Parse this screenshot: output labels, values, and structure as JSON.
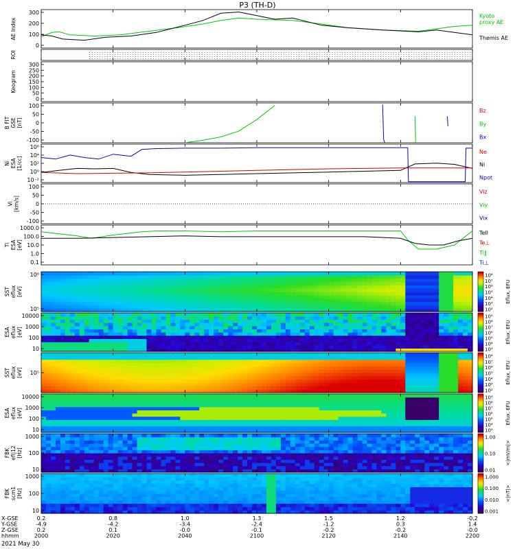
{
  "chart_data": {
    "type": "line",
    "title": "P3 (TH-D)",
    "date_label": "2021 May 30",
    "x_axis": {
      "rows": [
        {
          "label": "X-GSE",
          "values": [
            "0.2",
            "0.8",
            "1.0",
            "1.3",
            "1.5",
            "1.2",
            "-0.2"
          ]
        },
        {
          "label": "Y-GSE",
          "values": [
            "-4.9",
            "-4.2",
            "-3.4",
            "-2.4",
            "-1.2",
            "0.3",
            "1.4"
          ]
        },
        {
          "label": "Z-GSE",
          "values": [
            "0.2",
            "0.1",
            "-0.0",
            "-0.1",
            "-0.2",
            "-0.2",
            "-0.0"
          ]
        },
        {
          "label": "hhmm",
          "values": [
            "2000",
            "2020",
            "2040",
            "2100",
            "2120",
            "2140",
            "2200"
          ]
        }
      ]
    },
    "panels": [
      {
        "id": "ae",
        "ylabel": [
          "AE Index"
        ],
        "yticks": [
          "300",
          "200",
          "100",
          "0"
        ],
        "ylim": [
          0,
          320
        ],
        "legend": [
          {
            "text": "Kyoto",
            "color": "#00c800"
          },
          {
            "text": "proxy AE",
            "color": "#00c800"
          },
          {
            "text": "Themis AE",
            "color": "#000000"
          }
        ],
        "series": [
          {
            "name": "Kyoto proxy AE",
            "color": "#00c800",
            "x": [
              0,
              3,
              5,
              8,
              15,
              22,
              30,
              38,
              45,
              50,
              55,
              60,
              70,
              78,
              85,
              95,
              105,
              110,
              115,
              120
            ],
            "y": [
              95,
              130,
              135,
              110,
              100,
              110,
              140,
              170,
              200,
              230,
              250,
              240,
              230,
              200,
              170,
              150,
              140,
              160,
              180,
              190
            ]
          },
          {
            "name": "Themis AE",
            "color": "#000000",
            "x": [
              0,
              3,
              6,
              12,
              18,
              25,
              32,
              40,
              45,
              50,
              55,
              60,
              65,
              70,
              78,
              85,
              95,
              105,
              110,
              115,
              120
            ],
            "y": [
              110,
              100,
              75,
              65,
              90,
              100,
              130,
              190,
              230,
              290,
              300,
              270,
              240,
              250,
              190,
              170,
              150,
              135,
              150,
              130,
              110
            ]
          }
        ]
      },
      {
        "id": "roi",
        "ylabel": [
          "ROI"
        ],
        "yticks": []
      },
      {
        "id": "kgram",
        "ylabel": [
          "Keogram"
        ],
        "yticks": [
          "300",
          "250",
          "200",
          "150",
          "100",
          "50",
          "0"
        ]
      },
      {
        "id": "bfit",
        "ylabel": [
          "B FIT",
          "GSE",
          "[nT]"
        ],
        "yticks": [
          "100",
          "50",
          "0",
          "-50",
          "-100"
        ],
        "ylim": [
          -120,
          120
        ],
        "legend": [
          {
            "text": "Bz",
            "color": "#d00000"
          },
          {
            "text": "By",
            "color": "#00c800"
          },
          {
            "text": "Bx",
            "color": "#0000c8"
          }
        ],
        "series": [
          {
            "name": "By",
            "color": "#00c800",
            "x": [
              40,
              45,
              50,
              55,
              60,
              65
            ],
            "y": [
              -120,
              -105,
              -85,
              -50,
              20,
              105
            ]
          },
          {
            "name": "Bx",
            "color": "#0000c8",
            "x": [
              95,
              95.3,
              95.6
            ],
            "y": [
              110,
              -100,
              -120
            ]
          },
          {
            "name": "By2",
            "color": "#00c800",
            "x": [
              104,
              104.2
            ],
            "y": [
              40,
              -120
            ]
          },
          {
            "name": "Bx2",
            "color": "#0000c8",
            "x": [
              113,
              113.2
            ],
            "y": [
              40,
              -20
            ]
          }
        ]
      },
      {
        "id": "ni",
        "ylabel": [
          "Ni",
          "ESA",
          "[1/cc]"
        ],
        "yticks": [
          "10⁶",
          "10⁴",
          "10²",
          "10⁰",
          "10⁻²"
        ],
        "ylim": [
          -3,
          6.5
        ],
        "legend": [
          {
            "text": "Ne",
            "color": "#d00000"
          },
          {
            "text": "Ni",
            "color": "#000000"
          },
          {
            "text": "Npot",
            "color": "#0000c8"
          }
        ],
        "series": [
          {
            "name": "Npot",
            "color": "#0000c8",
            "x": [
              0,
              4,
              8,
              12,
              16,
              20,
              25,
              28,
              32,
              40,
              50,
              60,
              70,
              80,
              90,
              100,
              102,
              102.2,
              103,
              118,
              118.2,
              120
            ],
            "y": [
              3.2,
              2.8,
              3.8,
              3.2,
              2.8,
              4.0,
              3.5,
              5.2,
              5.4,
              5.5,
              5.5,
              5.6,
              5.6,
              5.6,
              5.6,
              5.6,
              5.6,
              -2.8,
              -2.8,
              -2.8,
              5.5,
              5.5
            ]
          },
          {
            "name": "Ni",
            "color": "#000000",
            "x": [
              0,
              5,
              10,
              15,
              20,
              25,
              30,
              40,
              50,
              60,
              70,
              80,
              90,
              100,
              104,
              110,
              115,
              120
            ],
            "y": [
              -0.5,
              0,
              0.5,
              0.4,
              0.5,
              -0.5,
              -1.0,
              -1.2,
              -1.0,
              -0.8,
              -0.6,
              -0.4,
              -0.2,
              0,
              1.6,
              1.8,
              1.5,
              0.5
            ]
          },
          {
            "name": "Ne",
            "color": "#d00000",
            "x": [
              0,
              10,
              20,
              30,
              40,
              50,
              60,
              70,
              80,
              90,
              100,
              110,
              120
            ],
            "y": [
              -0.5,
              -0.8,
              -0.7,
              -0.6,
              -0.4,
              -0.2,
              0,
              0.2,
              0.4,
              0.5,
              0.6,
              0.6,
              0.6
            ]
          }
        ]
      },
      {
        "id": "vi",
        "ylabel": [
          "Vi",
          "[km/s]"
        ],
        "yticks": [
          "100",
          "50",
          "0",
          "-50",
          "-100"
        ],
        "ylim": [
          -120,
          120
        ],
        "legend": [
          {
            "text": "Viz",
            "color": "#d00000"
          },
          {
            "text": "Viy",
            "color": "#00c800"
          },
          {
            "text": "Vix",
            "color": "#0000c8"
          }
        ]
      },
      {
        "id": "ti",
        "ylabel": [
          "Ti",
          "ESA",
          "[eV]"
        ],
        "yticks": [
          "1000.0",
          "100.0",
          "10.0",
          "1.0",
          "0.1"
        ],
        "ylim": [
          -1.2,
          3.6
        ],
        "legend": [
          {
            "text": "Tell",
            "color": "#000000"
          },
          {
            "text": "Te⊥",
            "color": "#d00000"
          },
          {
            "text": "Ti‖",
            "color": "#00c800"
          },
          {
            "text": "Ti⊥",
            "color": "#0000c8"
          }
        ],
        "series": [
          {
            "name": "Ti",
            "color": "#00c800",
            "x": [
              0,
              4,
              8,
              10,
              14,
              20,
              24,
              28,
              32,
              40,
              50,
              60,
              70,
              80,
              90,
              100,
              102,
              105,
              110,
              115,
              120
            ],
            "y": [
              2.8,
              2.6,
              2.4,
              2.3,
              2.0,
              2.4,
              2.6,
              2.8,
              2.9,
              2.9,
              2.8,
              2.9,
              2.9,
              2.9,
              2.9,
              2.9,
              1.8,
              0.7,
              0.7,
              1.2,
              2.9
            ]
          },
          {
            "name": "Te",
            "color": "#000000",
            "x": [
              0,
              10,
              20,
              30,
              40,
              50,
              60,
              70,
              80,
              90,
              100,
              104,
              108,
              112,
              116,
              120
            ],
            "y": [
              2.0,
              2.0,
              2.1,
              2.2,
              2.3,
              2.2,
              2.2,
              2.2,
              2.2,
              2.2,
              2.0,
              1.4,
              1.2,
              1.2,
              1.7,
              2.0
            ]
          }
        ]
      },
      {
        "id": "sst1",
        "ylabel": [
          "SST",
          "eflux",
          "[eV]"
        ],
        "yticks": [
          "10⁶",
          "10⁵"
        ],
        "colorbar": {
          "label": "Eflux, EFU",
          "ticks": [
            "10⁸",
            "10⁷",
            "10⁶",
            "10⁵",
            "10⁴",
            "10³",
            "10²"
          ]
        }
      },
      {
        "id": "esa1",
        "ylabel": [
          "ESA",
          "eflux",
          "[eV]"
        ],
        "yticks": [
          "10000",
          "1000",
          "100",
          "10"
        ],
        "colorbar": {
          "label": "Eflux, EFU",
          "ticks": [
            "10⁹",
            "10⁸",
            "10⁷",
            "10⁶",
            "10⁵",
            "10⁴",
            "10³"
          ]
        }
      },
      {
        "id": "sst2",
        "ylabel": [
          "SST",
          "eflux",
          "[eV]"
        ],
        "yticks": [
          "10⁵"
        ],
        "colorbar": {
          "label": "Eflux, EFU",
          "ticks": [
            "10⁸",
            "10⁷",
            "10⁶",
            "10⁵",
            "10⁴",
            "10³",
            "10²"
          ]
        }
      },
      {
        "id": "esa2",
        "ylabel": [
          "ESA",
          "eflux",
          "[eV]"
        ],
        "yticks": [
          "10000",
          "1000",
          "100",
          "10"
        ],
        "colorbar": {
          "label": "Eflux, EFU",
          "ticks": [
            "10⁹",
            "10⁸",
            "10⁷",
            "10⁶",
            "10⁵",
            "10⁴",
            "10³"
          ]
        }
      },
      {
        "id": "fbk1",
        "ylabel": [
          "FBK",
          "efi|12",
          "[Hz]"
        ],
        "yticks": [
          "1000",
          "100",
          "10"
        ],
        "colorbar": {
          "label": "<|mV/m|>",
          "ticks": [
            "1.00",
            "0.10",
            "0.01"
          ]
        }
      },
      {
        "id": "fbk2",
        "ylabel": [
          "FBK",
          "scm1",
          "[Hz]"
        ],
        "yticks": [
          "1000",
          "100",
          "10"
        ],
        "colorbar": {
          "label": "<|nT|>",
          "ticks": [
            "1.000",
            "0.100",
            "0.010",
            "0.001"
          ]
        }
      }
    ]
  }
}
